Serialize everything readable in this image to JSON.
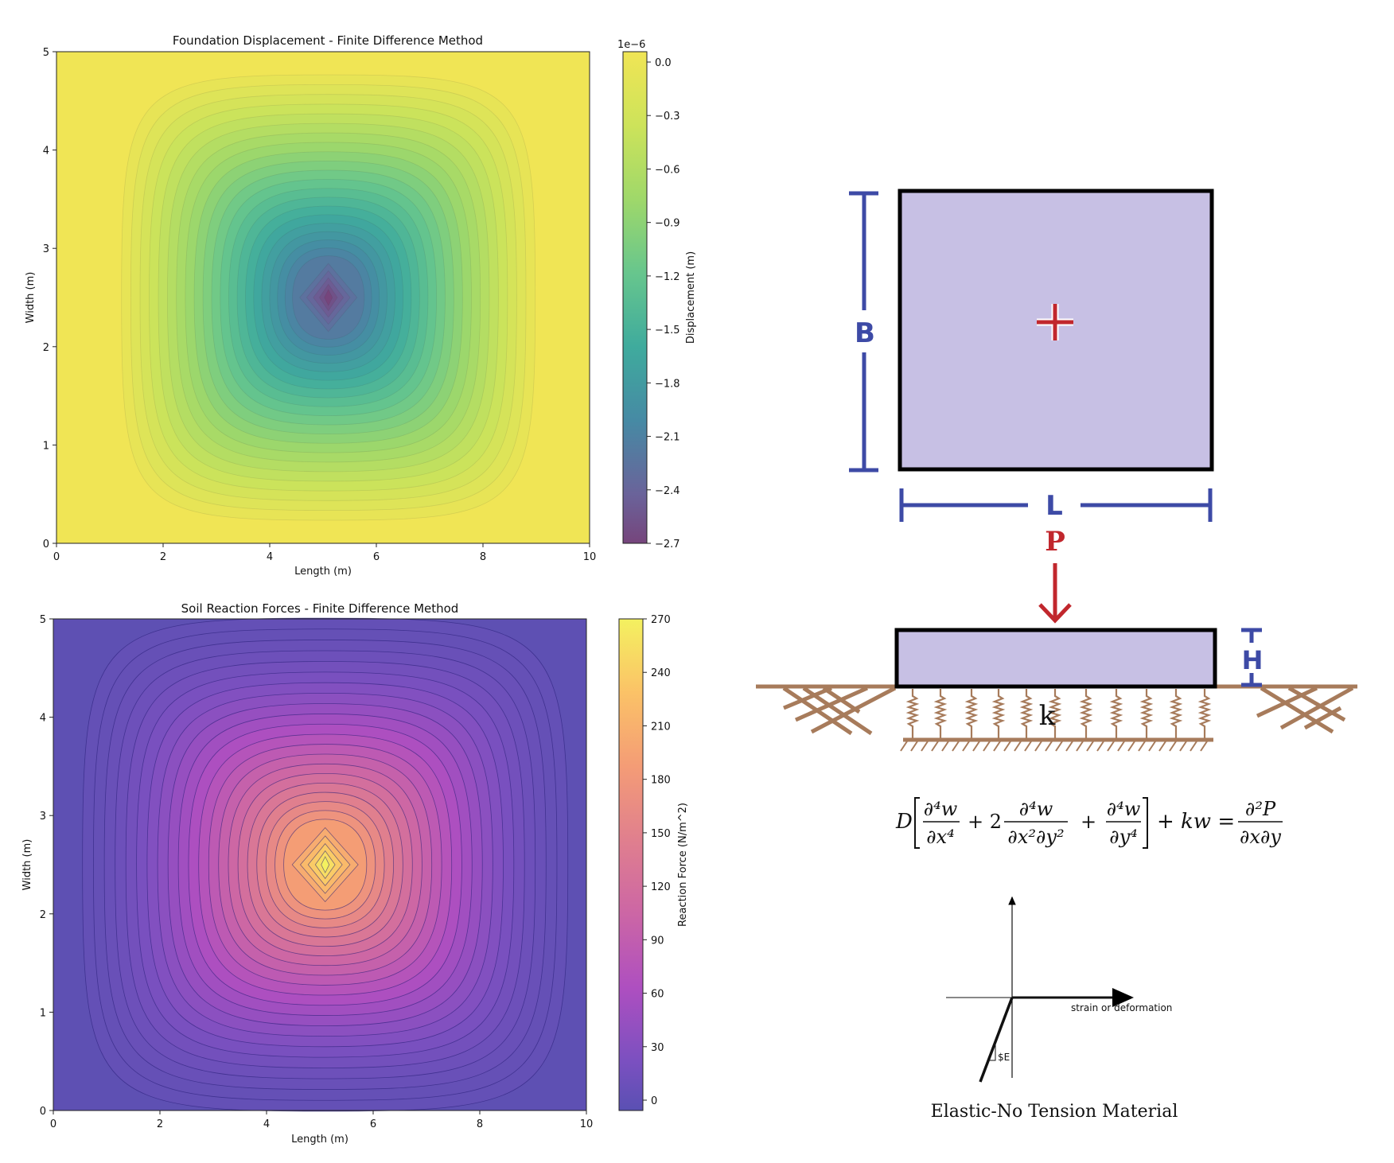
{
  "charts": [
    {
      "title": "Foundation Displacement - Finite Difference Method",
      "xlabel": "Length (m)",
      "ylabel": "Width (m)",
      "xticks": [
        "0",
        "2",
        "4",
        "6",
        "8",
        "10"
      ],
      "yticks": [
        "0",
        "1",
        "2",
        "3",
        "4",
        "5"
      ],
      "cbar_label": "Displacement (m)",
      "cbar_offset": "1e−6",
      "cbar_ticks": [
        "0.0",
        "−0.3",
        "−0.6",
        "−0.9",
        "−1.2",
        "−1.5",
        "−1.8",
        "−2.1",
        "−2.4",
        "−2.7"
      ]
    },
    {
      "title": "Soil Reaction Forces - Finite Difference Method",
      "xlabel": "Length (m)",
      "ylabel": "Width (m)",
      "xticks": [
        "0",
        "2",
        "4",
        "6",
        "8",
        "10"
      ],
      "yticks": [
        "0",
        "1",
        "2",
        "3",
        "4",
        "5"
      ],
      "cbar_label": "Reaction Force (N/m^2)",
      "cbar_ticks": [
        "270",
        "240",
        "210",
        "180",
        "150",
        "120",
        "90",
        "60",
        "30",
        "0"
      ]
    }
  ],
  "chart_data": [
    {
      "type": "heatmap",
      "title": "Foundation Displacement - Finite Difference Method",
      "xlabel": "Length (m)",
      "ylabel": "Width (m)",
      "xlim": [
        0,
        10
      ],
      "ylim": [
        0,
        5
      ],
      "peak_location": [
        5.1,
        2.5
      ],
      "value_range": [
        -2.7e-06,
        0.0
      ],
      "colorbar_label": "Displacement (m)",
      "colorbar_scale": "1e-6",
      "colormap": "viridis",
      "colorbar_ticks": [
        0.0,
        -0.3,
        -0.6,
        -0.9,
        -1.2,
        -1.5,
        -1.8,
        -2.1,
        -2.4,
        -2.7
      ]
    },
    {
      "type": "heatmap",
      "title": "Soil Reaction Forces - Finite Difference Method",
      "xlabel": "Length (m)",
      "ylabel": "Width (m)",
      "xlim": [
        0,
        10
      ],
      "ylim": [
        0,
        5
      ],
      "peak_location": [
        5.1,
        2.5
      ],
      "value_range": [
        0,
        270
      ],
      "colorbar_label": "Reaction Force (N/m^2)",
      "colormap": "plasma",
      "colorbar_ticks": [
        0,
        30,
        60,
        90,
        120,
        150,
        180,
        210,
        240,
        270
      ]
    }
  ],
  "diagram": {
    "label_B": "B",
    "label_L": "L",
    "label_P": "P",
    "label_H": "H",
    "label_k": "k",
    "equation": {
      "D": "D",
      "t1_num": "∂⁴w",
      "t1_den": "∂x⁴",
      "plus2": "+ 2",
      "t2_num": "∂⁴w",
      "t2_den": "∂x²∂y²",
      "plus": "+",
      "t3_num": "∂⁴w",
      "t3_den": "∂y⁴",
      "kw": "+ kw =",
      "rhs_num": "∂²P",
      "rhs_den": "∂x∂y"
    },
    "strain_label": "strain or deformation",
    "slope_label": "$E",
    "material_title": "Elastic-No Tension Material"
  },
  "colors": {
    "plate_fill": "#c7c0e4",
    "dim_blue": "#3d4aa6",
    "load_red": "#c1272d",
    "soil_brown": "#a77b5b"
  }
}
